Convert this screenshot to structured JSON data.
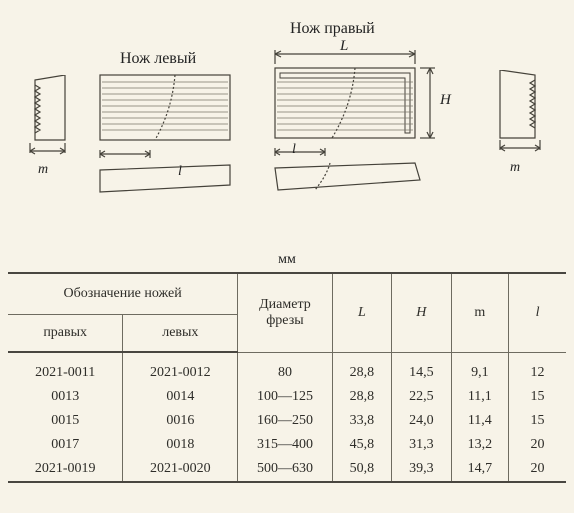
{
  "diagram": {
    "labels": {
      "left_title": "Нож левый",
      "right_title": "Нож правый",
      "L": "L",
      "H": "H",
      "m_left": "m",
      "m_right": "m",
      "l_left": "l",
      "l_right": "l"
    },
    "colors": {
      "stroke": "#45423a",
      "hatch": "#7a766a",
      "bg": "#f7f3e8"
    }
  },
  "unit_label": "мм",
  "table": {
    "headers": {
      "group": "Обозначение ножей",
      "right_col": "правых",
      "left_col": "левых",
      "diam": "Диаметр фрезы",
      "L": "L",
      "H": "H",
      "m": "m",
      "l": "l"
    },
    "col_widths": [
      "108",
      "108",
      "90",
      "58",
      "58",
      "56",
      "56"
    ],
    "rows": [
      {
        "right": "2021-0011",
        "left": "2021-0012",
        "diam": "80",
        "L": "28,8",
        "H": "14,5",
        "m": "9,1",
        "l": "12"
      },
      {
        "right": "0013",
        "left": "0014",
        "diam": "100—125",
        "L": "28,8",
        "H": "22,5",
        "m": "11,1",
        "l": "15"
      },
      {
        "right": "0015",
        "left": "0016",
        "diam": "160—250",
        "L": "33,8",
        "H": "24,0",
        "m": "11,4",
        "l": "15"
      },
      {
        "right": "0017",
        "left": "0018",
        "diam": "315—400",
        "L": "45,8",
        "H": "31,3",
        "m": "13,2",
        "l": "20"
      },
      {
        "right": "2021-0019",
        "left": "2021-0020",
        "diam": "500—630",
        "L": "50,8",
        "H": "39,3",
        "m": "14,7",
        "l": "20"
      }
    ]
  }
}
